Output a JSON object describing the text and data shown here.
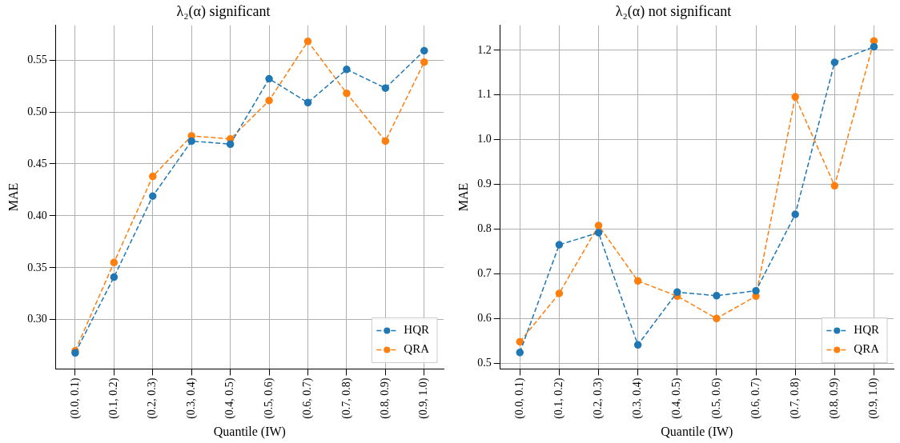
{
  "chart_data": [
    {
      "type": "line",
      "title": "λ₂(α) significant",
      "xlabel": "Quantile (IW)",
      "ylabel": "MAE",
      "categories": [
        "(0.0, 0.1)",
        "(0.1, 0.2)",
        "(0.2, 0.3)",
        "(0.3, 0.4)",
        "(0.4, 0.5)",
        "(0.5, 0.6)",
        "(0.6, 0.7)",
        "(0.7, 0.8)",
        "(0.8, 0.9)",
        "(0.9, 1.0)"
      ],
      "series": [
        {
          "name": "HQR",
          "color": "#1f77b4",
          "values": [
            0.268,
            0.341,
            0.419,
            0.472,
            0.469,
            0.532,
            0.509,
            0.541,
            0.523,
            0.559
          ]
        },
        {
          "name": "QRA",
          "color": "#ff7f0e",
          "values": [
            0.27,
            0.355,
            0.438,
            0.477,
            0.474,
            0.511,
            0.568,
            0.518,
            0.472,
            0.548
          ]
        }
      ],
      "ylim": [
        0.2525,
        0.5835
      ],
      "yticks": [
        {
          "value": 0.3,
          "label": "0.30"
        },
        {
          "value": 0.35,
          "label": "0.35"
        },
        {
          "value": 0.4,
          "label": "0.40"
        },
        {
          "value": 0.45,
          "label": "0.45"
        },
        {
          "value": 0.5,
          "label": "0.50"
        },
        {
          "value": 0.55,
          "label": "0.55"
        }
      ],
      "grid": true,
      "legend": "bottom right",
      "marker": "circle",
      "line_style": "dashed"
    },
    {
      "type": "line",
      "title": "λ₂(α) not significant",
      "xlabel": "Quantile (IW)",
      "ylabel": "MAE",
      "categories": [
        "(0.0, 0.1)",
        "(0.1, 0.2)",
        "(0.2, 0.3)",
        "(0.3, 0.4)",
        "(0.4, 0.5)",
        "(0.5, 0.6)",
        "(0.6, 0.7)",
        "(0.7, 0.8)",
        "(0.8, 0.9)",
        "(0.9, 1.0)"
      ],
      "series": [
        {
          "name": "HQR",
          "color": "#1f77b4",
          "values": [
            0.524,
            0.765,
            0.792,
            0.541,
            0.659,
            0.651,
            0.662,
            0.833,
            1.173,
            1.208
          ]
        },
        {
          "name": "QRA",
          "color": "#ff7f0e",
          "values": [
            0.548,
            0.656,
            0.808,
            0.684,
            0.65,
            0.6,
            0.65,
            1.096,
            0.897,
            1.221
          ]
        }
      ],
      "ylim": [
        0.487,
        1.256
      ],
      "yticks": [
        0.5,
        0.6,
        0.7,
        0.8,
        0.9,
        {
          "value": 1.0,
          "label": "1.0"
        },
        1.1,
        1.2
      ],
      "grid": true,
      "legend": "bottom right",
      "marker": "circle",
      "line_style": "dashed"
    }
  ]
}
